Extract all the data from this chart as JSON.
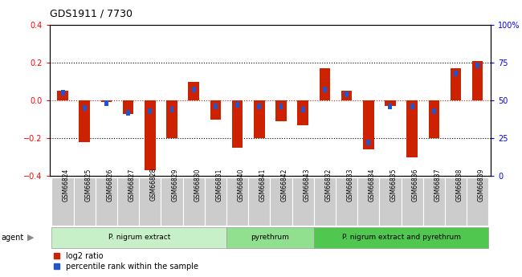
{
  "title": "GDS1911 / 7730",
  "samples": [
    "GSM66824",
    "GSM66825",
    "GSM66826",
    "GSM66827",
    "GSM66828",
    "GSM66829",
    "GSM66830",
    "GSM66831",
    "GSM66840",
    "GSM66841",
    "GSM66842",
    "GSM66843",
    "GSM66832",
    "GSM66833",
    "GSM66834",
    "GSM66835",
    "GSM66836",
    "GSM66837",
    "GSM66838",
    "GSM66839"
  ],
  "log2_ratio": [
    0.05,
    -0.22,
    -0.01,
    -0.07,
    -0.37,
    -0.2,
    0.1,
    -0.1,
    -0.25,
    -0.2,
    -0.11,
    -0.13,
    0.17,
    0.05,
    -0.26,
    -0.03,
    -0.3,
    -0.2,
    0.17,
    0.21
  ],
  "percentile_rank": [
    55,
    45,
    48,
    42,
    43,
    44,
    57,
    46,
    47,
    46,
    46,
    44,
    57,
    54,
    22,
    46,
    46,
    43,
    68,
    73
  ],
  "groups": [
    {
      "label": "P. nigrum extract",
      "start": 0,
      "end": 7,
      "color": "#c8f0c8"
    },
    {
      "label": "pyrethrum",
      "start": 8,
      "end": 11,
      "color": "#90e090"
    },
    {
      "label": "P. nigrum extract and pyrethrum",
      "start": 12,
      "end": 19,
      "color": "#50c850"
    }
  ],
  "bar_color_red": "#cc2200",
  "bar_color_blue": "#2255cc",
  "ylim_left": [
    -0.4,
    0.4
  ],
  "ylim_right": [
    0,
    100
  ],
  "yticks_left": [
    -0.4,
    -0.2,
    0.0,
    0.2,
    0.4
  ],
  "yticks_right": [
    0,
    25,
    50,
    75,
    100
  ],
  "ytick_labels_right": [
    "0",
    "25",
    "50",
    "75",
    "100%"
  ],
  "dotted_color": "#000000",
  "legend_red": "log2 ratio",
  "legend_blue": "percentile rank within the sample",
  "agent_label": "agent",
  "bar_width": 0.5,
  "blue_bar_width": 0.18,
  "blue_bar_height": 0.03
}
